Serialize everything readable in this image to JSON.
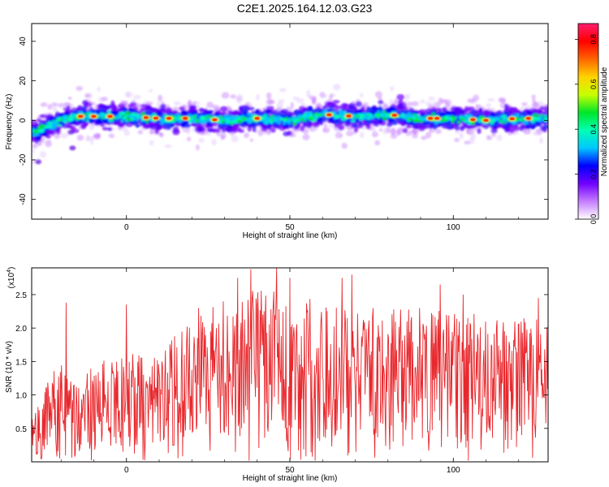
{
  "title": "C2E1.2025.164.12.03.G23",
  "chart_data": [
    {
      "type": "heatmap",
      "xlabel": "Height of straight line (km)",
      "ylabel": "Frequency (Hz)",
      "xlim": [
        -29,
        129
      ],
      "ylim": [
        -50,
        49
      ],
      "xticks": [
        0,
        50,
        100
      ],
      "yticks": [
        -40,
        -20,
        0,
        20,
        40
      ],
      "ridge": [
        {
          "x": -28,
          "y": -6
        },
        {
          "x": -24,
          "y": -3
        },
        {
          "x": -20,
          "y": 0
        },
        {
          "x": -15,
          "y": 2
        },
        {
          "x": -10,
          "y": 2
        },
        {
          "x": 0,
          "y": 2
        },
        {
          "x": 10,
          "y": 1
        },
        {
          "x": 20,
          "y": 1
        },
        {
          "x": 30,
          "y": 0
        },
        {
          "x": 40,
          "y": 1
        },
        {
          "x": 50,
          "y": 0
        },
        {
          "x": 60,
          "y": 3
        },
        {
          "x": 70,
          "y": 2
        },
        {
          "x": 80,
          "y": 3
        },
        {
          "x": 90,
          "y": 1
        },
        {
          "x": 100,
          "y": 1
        },
        {
          "x": 110,
          "y": 0
        },
        {
          "x": 120,
          "y": 1
        },
        {
          "x": 129,
          "y": 1
        }
      ],
      "colorbar": {
        "label": "Normalized spectral amplitude",
        "range": [
          0,
          0.87
        ],
        "ticks": [
          "0.0",
          "0.2",
          "0.4",
          "0.6",
          "0.8"
        ],
        "colors": [
          "#ffffff",
          "#c57dff",
          "#7000ff",
          "#0000ff",
          "#00c8ff",
          "#00ffb4",
          "#00e628",
          "#c8ff00",
          "#ffd200",
          "#ff6400",
          "#ff0000",
          "#ff1e6e"
        ]
      }
    },
    {
      "type": "line",
      "xlabel": "Height of straight line (km)",
      "ylabel": "SNR (10 * v/v)",
      "y_multiplier": "(x10",
      "y_multiplier_exp": "4",
      "xlim": [
        -29,
        129
      ],
      "ylim": [
        0,
        2.9
      ],
      "xticks": [
        0,
        50,
        100
      ],
      "yticks": [
        "0.5",
        "1.0",
        "1.5",
        "2.0",
        "2.5"
      ],
      "color": "#e8282d",
      "envelope": [
        {
          "x": -29,
          "y": 0.7
        },
        {
          "x": -20,
          "y": 1.6
        },
        {
          "x": -15,
          "y": 1.1
        },
        {
          "x": -10,
          "y": 1.5
        },
        {
          "x": 0,
          "y": 1.6
        },
        {
          "x": 10,
          "y": 1.7
        },
        {
          "x": 20,
          "y": 2.1
        },
        {
          "x": 30,
          "y": 2.5
        },
        {
          "x": 40,
          "y": 2.6
        },
        {
          "x": 50,
          "y": 2.5
        },
        {
          "x": 60,
          "y": 2.4
        },
        {
          "x": 70,
          "y": 2.3
        },
        {
          "x": 80,
          "y": 2.3
        },
        {
          "x": 90,
          "y": 2.3
        },
        {
          "x": 100,
          "y": 2.3
        },
        {
          "x": 110,
          "y": 2.2
        },
        {
          "x": 120,
          "y": 2.2
        },
        {
          "x": 129,
          "y": 2.1
        }
      ],
      "peaks": [
        {
          "x": -18.5,
          "y": 2.38
        },
        {
          "x": 0,
          "y": 2.35
        },
        {
          "x": 22,
          "y": 2.3
        },
        {
          "x": 34,
          "y": 2.75
        },
        {
          "x": 38,
          "y": 2.88
        },
        {
          "x": 46,
          "y": 2.9
        },
        {
          "x": 50,
          "y": 2.75
        },
        {
          "x": 66,
          "y": 2.75
        },
        {
          "x": 69,
          "y": 2.8
        },
        {
          "x": 96,
          "y": 2.65
        },
        {
          "x": 103,
          "y": 2.5
        },
        {
          "x": 126,
          "y": 2.45
        }
      ]
    }
  ]
}
